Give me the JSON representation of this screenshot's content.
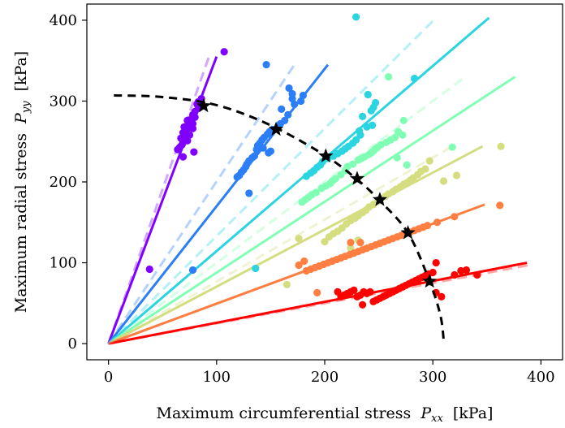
{
  "chart_data": {
    "type": "scatter",
    "xlabel": "Maximum circumferential stress",
    "xlabel_symbol": "P",
    "xlabel_subscript": "xx",
    "xlabel_unit": "[kPa]",
    "ylabel": "Maximum radial stress",
    "ylabel_symbol": "P",
    "ylabel_subscript": "yy",
    "ylabel_unit": "[kPa]",
    "xlim": [
      -20,
      420
    ],
    "ylim": [
      -20,
      420
    ],
    "xticks": [
      "0",
      "100",
      "200",
      "300",
      "400"
    ],
    "yticks": [
      "0",
      "100",
      "200",
      "300",
      "400"
    ],
    "grid": false,
    "series": [
      {
        "color": "#8000ff",
        "fit_end": [
          100,
          355
        ],
        "dash_end": [
          93,
          355
        ],
        "star": [
          88,
          294
        ],
        "points": [
          [
            107,
            361
          ],
          [
            86,
            303
          ],
          [
            83,
            299
          ],
          [
            82,
            296
          ],
          [
            83,
            291
          ],
          [
            80,
            287
          ],
          [
            78,
            283
          ],
          [
            80,
            280
          ],
          [
            76,
            277
          ],
          [
            73,
            276
          ],
          [
            78,
            272
          ],
          [
            75,
            270
          ],
          [
            70,
            268
          ],
          [
            78,
            266
          ],
          [
            72,
            263
          ],
          [
            69,
            261
          ],
          [
            75,
            258
          ],
          [
            71,
            256
          ],
          [
            67,
            254
          ],
          [
            73,
            251
          ],
          [
            69,
            249
          ],
          [
            68,
            246
          ],
          [
            66,
            243
          ],
          [
            64,
            240
          ],
          [
            72,
            258
          ],
          [
            79,
            237
          ],
          [
            69,
            231
          ],
          [
            38,
            92
          ]
        ]
      },
      {
        "color": "#2b7ef6",
        "fit_end": [
          203,
          345
        ],
        "dash_end": [
          172,
          345
        ],
        "star": [
          155,
          265
        ],
        "points": [
          [
            146,
            345
          ],
          [
            167,
            316
          ],
          [
            170,
            309
          ],
          [
            170,
            303
          ],
          [
            178,
            300
          ],
          [
            180,
            307
          ],
          [
            172,
            296
          ],
          [
            160,
            290
          ],
          [
            166,
            283
          ],
          [
            163,
            276
          ],
          [
            159,
            272
          ],
          [
            157,
            268
          ],
          [
            152,
            265
          ],
          [
            149,
            262
          ],
          [
            147,
            259
          ],
          [
            144,
            255
          ],
          [
            142,
            252
          ],
          [
            140,
            248
          ],
          [
            138,
            245
          ],
          [
            143,
            242
          ],
          [
            137,
            240
          ],
          [
            150,
            238
          ],
          [
            148,
            236
          ],
          [
            135,
            232
          ],
          [
            133,
            230
          ],
          [
            130,
            226
          ],
          [
            128,
            222
          ],
          [
            127,
            219
          ],
          [
            125,
            215
          ],
          [
            123,
            212
          ],
          [
            121,
            208
          ],
          [
            119,
            206
          ],
          [
            130,
            186
          ],
          [
            78,
            91
          ]
        ]
      },
      {
        "color": "#2ad4e1",
        "fit_end": [
          352,
          403
        ],
        "dash_end": [
          303,
          403
        ],
        "star": [
          201,
          232
        ],
        "points": [
          [
            229,
            404
          ],
          [
            240,
            308
          ],
          [
            247,
            298
          ],
          [
            245,
            292
          ],
          [
            243,
            288
          ],
          [
            235,
            281
          ],
          [
            244,
            270
          ],
          [
            239,
            268
          ],
          [
            232,
            263
          ],
          [
            233,
            258
          ],
          [
            229,
            252
          ],
          [
            226,
            248
          ],
          [
            222,
            244
          ],
          [
            219,
            241
          ],
          [
            216,
            238
          ],
          [
            212,
            235
          ],
          [
            208,
            232
          ],
          [
            203,
            229
          ],
          [
            198,
            225
          ],
          [
            196,
            221
          ],
          [
            193,
            218
          ],
          [
            190,
            214
          ],
          [
            187,
            211
          ],
          [
            183,
            207
          ],
          [
            283,
            328
          ],
          [
            136,
            93
          ]
        ]
      },
      {
        "color": "#80ffb4",
        "fit_end": [
          376,
          330
        ],
        "dash_end": [
          330,
          330
        ],
        "star": [
          230,
          204
        ],
        "points": [
          [
            259,
            330
          ],
          [
            273,
            276
          ],
          [
            268,
            262
          ],
          [
            272,
            258
          ],
          [
            265,
            255
          ],
          [
            261,
            252
          ],
          [
            257,
            249
          ],
          [
            252,
            246
          ],
          [
            249,
            243
          ],
          [
            247,
            241
          ],
          [
            245,
            238
          ],
          [
            243,
            236
          ],
          [
            241,
            234
          ],
          [
            237,
            231
          ],
          [
            234,
            229
          ],
          [
            231,
            227
          ],
          [
            226,
            222
          ],
          [
            221,
            219
          ],
          [
            219,
            214
          ],
          [
            215,
            209
          ],
          [
            210,
            204
          ],
          [
            207,
            201
          ],
          [
            205,
            198
          ],
          [
            201,
            195
          ],
          [
            197,
            192
          ],
          [
            192,
            187
          ],
          [
            188,
            184
          ],
          [
            185,
            181
          ],
          [
            182,
            178
          ],
          [
            179,
            175
          ],
          [
            267,
            230
          ],
          [
            276,
            221
          ],
          [
            318,
            243
          ]
        ]
      },
      {
        "color": "#d4dd80",
        "fit_end": [
          346,
          244
        ],
        "dash_end": [
          318,
          244
        ],
        "star": [
          251,
          178
        ],
        "points": [
          [
            363,
            244
          ],
          [
            322,
            208
          ],
          [
            310,
            201
          ],
          [
            297,
            226
          ],
          [
            293,
            216
          ],
          [
            289,
            213
          ],
          [
            286,
            209
          ],
          [
            282,
            205
          ],
          [
            279,
            202
          ],
          [
            276,
            199
          ],
          [
            273,
            197
          ],
          [
            270,
            194
          ],
          [
            266,
            191
          ],
          [
            263,
            188
          ],
          [
            259,
            185
          ],
          [
            256,
            182
          ],
          [
            252,
            179
          ],
          [
            249,
            176
          ],
          [
            245,
            172
          ],
          [
            241,
            169
          ],
          [
            238,
            165
          ],
          [
            235,
            162
          ],
          [
            231,
            158
          ],
          [
            228,
            155
          ],
          [
            224,
            152
          ],
          [
            220,
            148
          ],
          [
            216,
            143
          ],
          [
            212,
            139
          ],
          [
            208,
            136
          ],
          [
            204,
            132
          ],
          [
            200,
            126
          ],
          [
            231,
            128
          ],
          [
            224,
            118
          ],
          [
            176,
            130
          ],
          [
            165,
            73
          ]
        ]
      },
      {
        "color": "#ff7e41",
        "fit_end": [
          348,
          172
        ],
        "dash_end": [
          348,
          172
        ],
        "star": [
          277,
          137
        ],
        "points": [
          [
            362,
            171
          ],
          [
            320,
            157
          ],
          [
            304,
            150
          ],
          [
            295,
            146
          ],
          [
            291,
            144
          ],
          [
            287,
            142
          ],
          [
            283,
            140
          ],
          [
            279,
            138
          ],
          [
            275,
            136
          ],
          [
            271,
            134
          ],
          [
            267,
            132
          ],
          [
            263,
            130
          ],
          [
            259,
            128
          ],
          [
            255,
            126
          ],
          [
            251,
            124
          ],
          [
            247,
            122
          ],
          [
            243,
            120
          ],
          [
            239,
            118
          ],
          [
            235,
            116
          ],
          [
            231,
            114
          ],
          [
            227,
            112
          ],
          [
            223,
            110
          ],
          [
            219,
            108
          ],
          [
            215,
            106
          ],
          [
            211,
            104
          ],
          [
            207,
            102
          ],
          [
            203,
            100
          ],
          [
            199,
            98
          ],
          [
            195,
            96
          ],
          [
            191,
            94
          ],
          [
            187,
            92
          ],
          [
            183,
            90
          ],
          [
            181,
            102
          ],
          [
            176,
            97
          ],
          [
            224,
            125
          ],
          [
            233,
            125
          ],
          [
            193,
            63
          ]
        ]
      },
      {
        "color": "#ff0000",
        "fit_end": [
          387,
          100
        ],
        "dash_end": [
          392,
          98
        ],
        "star": [
          297,
          77
        ],
        "points": [
          [
            331,
            91
          ],
          [
            320,
            85
          ],
          [
            303,
            100
          ],
          [
            300,
            88
          ],
          [
            296,
            86
          ],
          [
            293,
            84
          ],
          [
            290,
            82
          ],
          [
            287,
            80
          ],
          [
            284,
            78
          ],
          [
            281,
            76
          ],
          [
            278,
            74
          ],
          [
            275,
            72
          ],
          [
            272,
            70
          ],
          [
            269,
            68
          ],
          [
            266,
            66
          ],
          [
            263,
            64
          ],
          [
            260,
            62
          ],
          [
            257,
            60
          ],
          [
            254,
            58
          ],
          [
            251,
            56
          ],
          [
            248,
            54
          ],
          [
            245,
            52
          ],
          [
            242,
            64
          ],
          [
            239,
            62
          ],
          [
            236,
            64
          ],
          [
            233,
            60
          ],
          [
            230,
            58
          ],
          [
            227,
            66
          ],
          [
            224,
            64
          ],
          [
            221,
            62
          ],
          [
            218,
            60
          ],
          [
            215,
            58
          ],
          [
            212,
            64
          ],
          [
            235,
            48
          ],
          [
            303,
            63
          ],
          [
            308,
            58
          ],
          [
            326,
            90
          ],
          [
            341,
            85
          ]
        ]
      }
    ],
    "envelope": {
      "color": "#000000",
      "points": [
        [
          5,
          307
        ],
        [
          50,
          305
        ],
        [
          100,
          295
        ],
        [
          150,
          270
        ],
        [
          200,
          233
        ],
        [
          230,
          203
        ],
        [
          250,
          178
        ],
        [
          277,
          137
        ],
        [
          297,
          77
        ],
        [
          307,
          35
        ],
        [
          310,
          5
        ]
      ]
    }
  }
}
